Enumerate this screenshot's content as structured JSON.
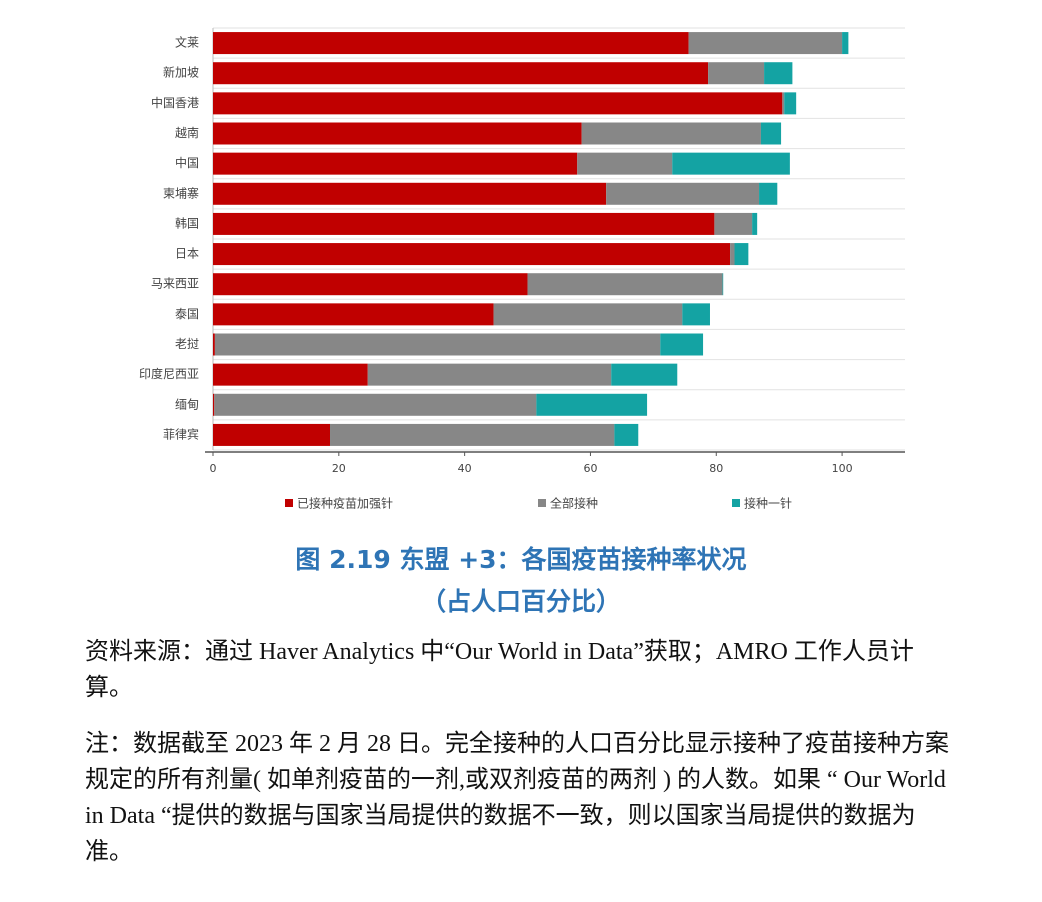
{
  "chart_data": {
    "type": "bar",
    "orientation": "horizontal",
    "stacked": true,
    "categories": [
      "文莱",
      "新加坡",
      "中国香港",
      "越南",
      "中国",
      "柬埔寨",
      "韩国",
      "日本",
      "马来西亚",
      "泰国",
      "老挝",
      "印度尼西亚",
      "缅甸",
      "菲律宾"
    ],
    "series": [
      {
        "name": "已接种疫苗加强针",
        "color": "#c00000",
        "values": [
          75.6,
          78.7,
          90.5,
          58.6,
          57.9,
          62.5,
          79.7,
          82.2,
          50.0,
          44.6,
          0.3,
          24.6,
          0.2,
          18.6
        ]
      },
      {
        "name": "全部接种",
        "color": "#878787",
        "values": [
          24.4,
          8.9,
          0.3,
          28.5,
          15.1,
          24.3,
          6.0,
          0.7,
          31.0,
          30.0,
          70.8,
          38.7,
          51.2,
          45.2
        ]
      },
      {
        "name": "接种一针",
        "color": "#14a3a3",
        "values": [
          1.0,
          4.5,
          1.9,
          3.2,
          18.7,
          2.9,
          0.8,
          2.2,
          0.1,
          4.4,
          6.8,
          10.5,
          17.6,
          3.8
        ]
      }
    ],
    "xlim": [
      0,
      110
    ],
    "xticks": [
      0,
      20,
      40,
      60,
      80,
      100
    ],
    "grid": true,
    "legend": "bottom"
  },
  "caption": {
    "title": "图 2.19 东盟 +3：各国疫苗接种率状况",
    "subtitle": "（占人口百分比）"
  },
  "notes": [
    "资料来源：通过 Haver Analytics 中“Our World in Data”获取；AMRO 工作人员计算。",
    "注：数据截至 2023 年 2 月 28 日。完全接种的人口百分比显示接种了疫苗接种方案规定的所有剂量( 如单剂疫苗的一剂,或双剂疫苗的两剂 ) 的人数。如果 “ Our World in Data “提供的数据与国家当局提供的数据不一致，则以国家当局提供的数据为准。"
  ]
}
